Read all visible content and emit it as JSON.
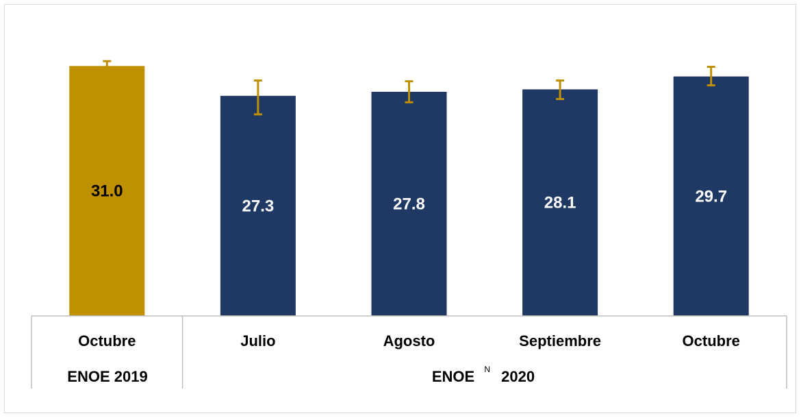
{
  "chart_data": {
    "type": "bar",
    "categories": [
      "Octubre",
      "Julio",
      "Agosto",
      "Septiembre",
      "Octubre"
    ],
    "values": [
      31.0,
      27.3,
      27.8,
      28.1,
      29.7
    ],
    "value_labels": [
      "31.0",
      "27.3",
      "27.8",
      "28.1",
      "29.7"
    ],
    "error_bars": [
      [
        30.4,
        31.6
      ],
      [
        25.0,
        29.2
      ],
      [
        26.5,
        29.1
      ],
      [
        26.9,
        29.2
      ],
      [
        28.6,
        30.9
      ]
    ],
    "groups": [
      {
        "label": "ENOE 2019",
        "categories": [
          0
        ]
      },
      {
        "label_main": "ENOE",
        "label_sup": "N",
        "label_year": "2020",
        "categories": [
          1,
          2,
          3,
          4
        ]
      }
    ],
    "ylim": [
      0,
      34
    ],
    "grid": false,
    "legend": false
  },
  "colors": {
    "bar_2019": "#bf9000",
    "bar_2020": "#203864",
    "error_bar": "#bf9000",
    "label_on_gold": "#000000",
    "label_on_navy": "#ffffff",
    "axis_line": "#bfbfbf"
  }
}
